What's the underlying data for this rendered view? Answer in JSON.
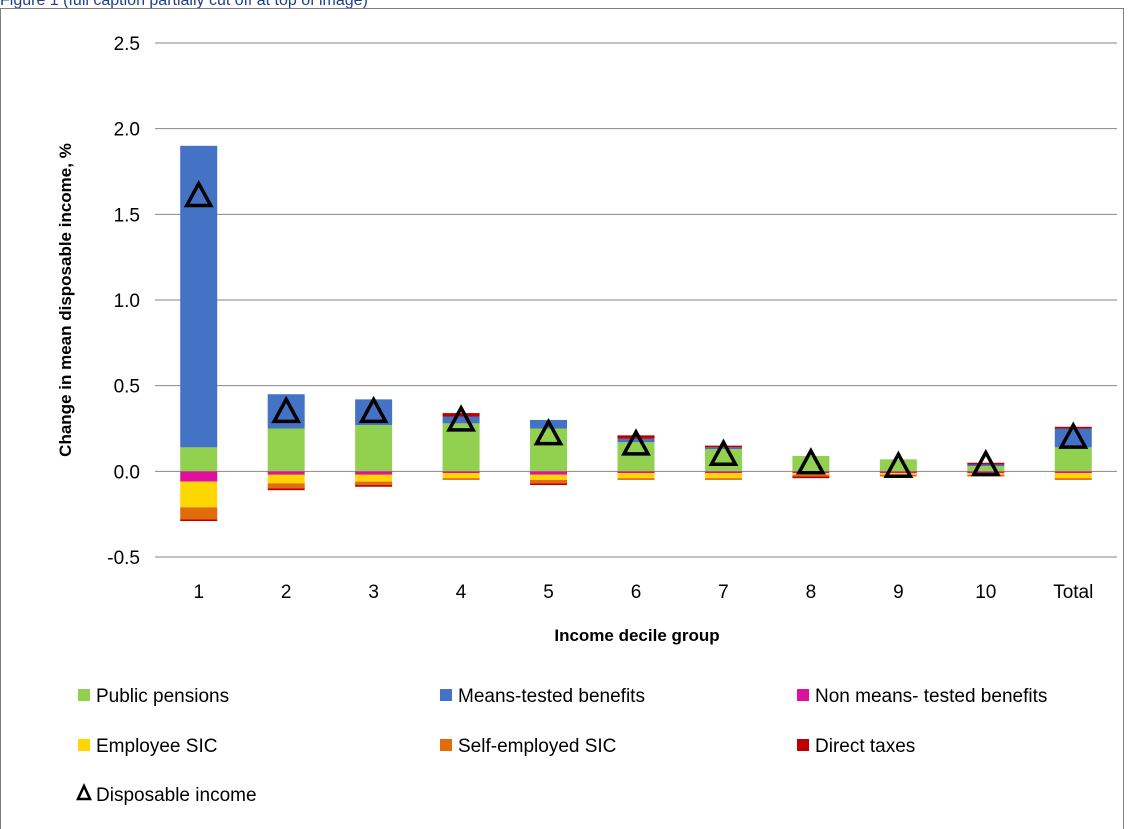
{
  "page": {
    "title": "Figure 1 (full caption partially cut off at top of image)"
  },
  "chart_data": {
    "type": "bar",
    "stacked": true,
    "categories": [
      "1",
      "2",
      "3",
      "4",
      "5",
      "6",
      "7",
      "8",
      "9",
      "10",
      "Total"
    ],
    "xlabel": "Income decile group",
    "ylabel": "Change in mean disposable income, %",
    "ylim": [
      -0.5,
      2.5
    ],
    "yticks": [
      "-0.5",
      "0.0",
      "0.5",
      "1.0",
      "1.5",
      "2.0",
      "2.5"
    ],
    "grid": true,
    "legend_position": "bottom",
    "series": [
      {
        "name": "Public pensions",
        "color": "#92d050",
        "kind": "bar",
        "values": [
          0.14,
          0.25,
          0.27,
          0.28,
          0.25,
          0.17,
          0.13,
          0.09,
          0.07,
          0.03,
          0.14
        ]
      },
      {
        "name": "Means-tested benefits",
        "color": "#4472c4",
        "kind": "bar",
        "values": [
          1.76,
          0.2,
          0.15,
          0.04,
          0.05,
          0.02,
          0.01,
          0.0,
          0.0,
          0.01,
          0.11
        ]
      },
      {
        "name": "Non means- tested benefits",
        "color": "#e0109e",
        "kind": "bar",
        "values": [
          -0.06,
          -0.02,
          -0.02,
          -0.01,
          -0.02,
          -0.01,
          -0.01,
          -0.01,
          -0.01,
          -0.01,
          -0.01
        ]
      },
      {
        "name": "Employee SIC",
        "color": "#ffd700",
        "kind": "bar",
        "values": [
          -0.15,
          -0.05,
          -0.04,
          -0.03,
          -0.03,
          -0.03,
          -0.03,
          -0.01,
          -0.01,
          -0.01,
          -0.03
        ]
      },
      {
        "name": "Self-employed SIC",
        "color": "#e36c0a",
        "kind": "bar",
        "values": [
          -0.07,
          -0.03,
          -0.02,
          -0.01,
          -0.02,
          -0.01,
          -0.01,
          -0.01,
          -0.01,
          -0.01,
          -0.01
        ]
      },
      {
        "name": "Direct taxes",
        "color": "#c00000",
        "kind": "bar",
        "values": [
          -0.01,
          -0.01,
          -0.01,
          0.02,
          -0.01,
          0.02,
          0.01,
          -0.01,
          0.0,
          0.01,
          0.01
        ]
      },
      {
        "name": "Disposable income",
        "color": "#000000",
        "kind": "marker",
        "values": [
          1.61,
          0.35,
          0.35,
          0.3,
          0.22,
          0.16,
          0.1,
          0.05,
          0.03,
          0.04,
          0.2
        ]
      }
    ]
  }
}
